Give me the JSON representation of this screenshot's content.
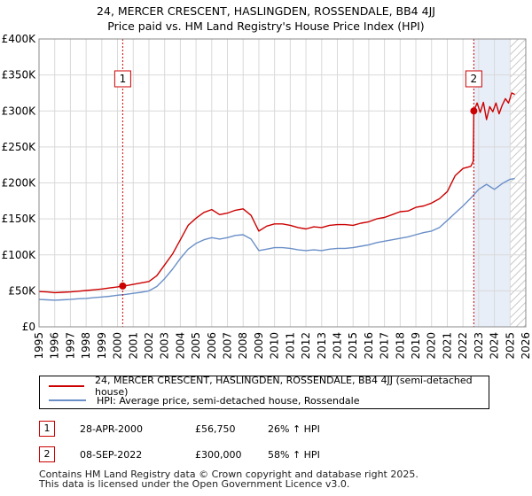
{
  "title_line1": "24, MERCER CRESCENT, HASLINGDEN, ROSSENDALE, BB4 4JJ",
  "title_line2": "Price paid vs. HM Land Registry's House Price Index (HPI)",
  "colors": {
    "property": "#cc0000",
    "hpi": "#6a8fc8",
    "grid": "#d9d9d9",
    "plot_bg": "#ffffff",
    "shade": "#e8eef8",
    "hatch": "#c8c8c8"
  },
  "chart_data": {
    "type": "line",
    "ylim": [
      0,
      400000
    ],
    "xlim": [
      1995.0,
      2026.0
    ],
    "y_ticks": [
      0,
      50000,
      100000,
      150000,
      200000,
      250000,
      300000,
      350000,
      400000
    ],
    "y_tick_labels": [
      "£0",
      "£50K",
      "£100K",
      "£150K",
      "£200K",
      "£250K",
      "£300K",
      "£350K",
      "£400K"
    ],
    "x_ticks": [
      1995,
      1996,
      1997,
      1998,
      1999,
      2000,
      2001,
      2002,
      2003,
      2004,
      2005,
      2006,
      2007,
      2008,
      2009,
      2010,
      2011,
      2012,
      2013,
      2014,
      2015,
      2016,
      2017,
      2018,
      2019,
      2020,
      2021,
      2022,
      2023,
      2024,
      2025,
      2026
    ],
    "x_tick_labels": [
      "1995",
      "1996",
      "1997",
      "1998",
      "1999",
      "2000",
      "2001",
      "2002",
      "2003",
      "2004",
      "2005",
      "2006",
      "2007",
      "2008",
      "2009",
      "2010",
      "2011",
      "2012",
      "2013",
      "2014",
      "2015",
      "2016",
      "2017",
      "2018",
      "2019",
      "2020",
      "2021",
      "2022",
      "2023",
      "2024",
      "2025",
      "2026"
    ],
    "shaded_region": [
      2022.69,
      2025.0
    ],
    "hatched_region_start": 2025.0,
    "series": [
      {
        "name": "24, MERCER CRESCENT, HASLINGDEN, ROSSENDALE, BB4 4JJ (semi-detached house)",
        "color": "#cc0000",
        "x": [
          1995.0,
          1995.5,
          1996.0,
          1996.5,
          1997.0,
          1997.5,
          1998.0,
          1998.5,
          1999.0,
          1999.5,
          2000.0,
          2000.33,
          2000.5,
          2001.0,
          2001.5,
          2002.0,
          2002.5,
          2003.0,
          2003.5,
          2004.0,
          2004.5,
          2005.0,
          2005.5,
          2006.0,
          2006.5,
          2007.0,
          2007.5,
          2008.0,
          2008.5,
          2009.0,
          2009.5,
          2010.0,
          2010.5,
          2011.0,
          2011.5,
          2012.0,
          2012.5,
          2013.0,
          2013.5,
          2014.0,
          2014.5,
          2015.0,
          2015.5,
          2016.0,
          2016.5,
          2017.0,
          2017.5,
          2018.0,
          2018.5,
          2019.0,
          2019.5,
          2020.0,
          2020.5,
          2021.0,
          2021.5,
          2022.0,
          2022.5,
          2022.65,
          2022.69,
          2022.9,
          2023.1,
          2023.3,
          2023.5,
          2023.7,
          2023.9,
          2024.1,
          2024.3,
          2024.5,
          2024.7,
          2024.9,
          2025.1,
          2025.3
        ],
        "values": [
          49000,
          48500,
          47500,
          48000,
          48500,
          49500,
          50500,
          51500,
          52500,
          54000,
          55500,
          56750,
          57000,
          59000,
          61000,
          63000,
          71000,
          86000,
          101000,
          121000,
          141000,
          151000,
          159000,
          163000,
          156000,
          158000,
          162000,
          164000,
          155000,
          133000,
          140000,
          143000,
          143000,
          141000,
          138000,
          136000,
          139000,
          138000,
          141000,
          142000,
          142000,
          141000,
          144000,
          146000,
          150000,
          152000,
          156000,
          160000,
          161000,
          166000,
          168000,
          172000,
          178000,
          188000,
          210000,
          220000,
          223000,
          230000,
          300000,
          311000,
          298000,
          312000,
          288000,
          306000,
          299000,
          311000,
          296000,
          308000,
          317000,
          311000,
          325000,
          323000
        ]
      },
      {
        "name": "HPI: Average price, semi-detached house, Rossendale",
        "color": "#6a8fc8",
        "x": [
          1995.0,
          1995.5,
          1996.0,
          1996.5,
          1997.0,
          1997.5,
          1998.0,
          1998.5,
          1999.0,
          1999.5,
          2000.0,
          2000.5,
          2001.0,
          2001.5,
          2002.0,
          2002.5,
          2003.0,
          2003.5,
          2004.0,
          2004.5,
          2005.0,
          2005.5,
          2006.0,
          2006.5,
          2007.0,
          2007.5,
          2008.0,
          2008.5,
          2009.0,
          2009.5,
          2010.0,
          2010.5,
          2011.0,
          2011.5,
          2012.0,
          2012.5,
          2013.0,
          2013.5,
          2014.0,
          2014.5,
          2015.0,
          2015.5,
          2016.0,
          2016.5,
          2017.0,
          2017.5,
          2018.0,
          2018.5,
          2019.0,
          2019.5,
          2020.0,
          2020.5,
          2021.0,
          2021.5,
          2022.0,
          2022.5,
          2023.0,
          2023.5,
          2024.0,
          2024.5,
          2025.0,
          2025.3
        ],
        "values": [
          38000,
          37500,
          37000,
          37500,
          38000,
          39000,
          39500,
          40500,
          41500,
          42500,
          44000,
          45000,
          46500,
          48000,
          50000,
          56000,
          67000,
          80000,
          95000,
          108000,
          116000,
          121000,
          124000,
          122000,
          124000,
          127000,
          128000,
          122000,
          106000,
          108000,
          110000,
          110000,
          109000,
          107000,
          106000,
          107000,
          106000,
          108000,
          109000,
          109000,
          110000,
          112000,
          114000,
          117000,
          119000,
          121000,
          123000,
          125000,
          128000,
          131000,
          133000,
          138000,
          148000,
          158000,
          168000,
          179000,
          191000,
          198000,
          191000,
          199000,
          205000,
          206000
        ]
      }
    ],
    "annotations": [
      {
        "label": "1",
        "x": 2000.33,
        "y": 56750
      },
      {
        "label": "2",
        "x": 2022.69,
        "y": 300000
      }
    ]
  },
  "legend": {
    "property_label": "24, MERCER CRESCENT, HASLINGDEN, ROSSENDALE, BB4 4JJ (semi-detached house)",
    "hpi_label": "HPI: Average price, semi-detached house, Rossendale"
  },
  "transactions": [
    {
      "marker": "1",
      "date": "28-APR-2000",
      "price": "£56,750",
      "hpi_change": "26% ↑ HPI"
    },
    {
      "marker": "2",
      "date": "08-SEP-2022",
      "price": "£300,000",
      "hpi_change": "58% ↑ HPI"
    }
  ],
  "footer_line1": "Contains HM Land Registry data © Crown copyright and database right 2025.",
  "footer_line2": "This data is licensed under the Open Government Licence v3.0."
}
